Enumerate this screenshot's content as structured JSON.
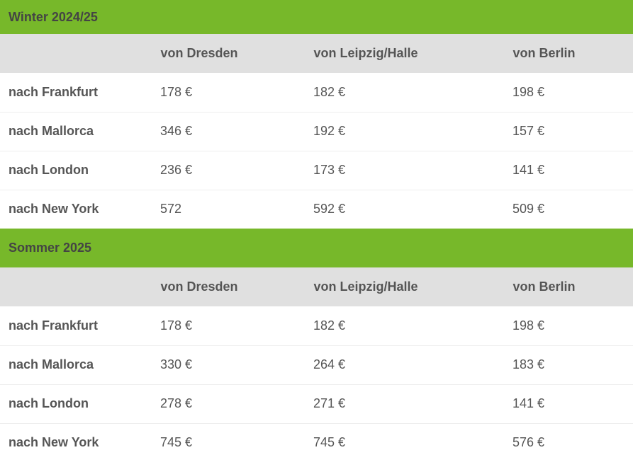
{
  "tables": [
    {
      "season": "Winter 2024/25",
      "columns": [
        "",
        "von Dresden",
        "von Leipzig/Halle",
        "von Berlin"
      ],
      "rows": [
        {
          "dest": "nach Frankfurt",
          "values": [
            "178 €",
            "182 €",
            "198 €"
          ]
        },
        {
          "dest": "nach Mallorca",
          "values": [
            "346 €",
            "192 €",
            "157 €"
          ]
        },
        {
          "dest": "nach London",
          "values": [
            "236 €",
            "173 €",
            "141 €"
          ]
        },
        {
          "dest": "nach New York",
          "values": [
            "572",
            "592 €",
            "509 €"
          ]
        }
      ]
    },
    {
      "season": "Sommer 2025",
      "columns": [
        "",
        "von Dresden",
        "von Leipzig/Halle",
        "von Berlin"
      ],
      "rows": [
        {
          "dest": "nach Frankfurt",
          "values": [
            "178 €",
            "182 €",
            "198 €"
          ]
        },
        {
          "dest": "nach Mallorca",
          "values": [
            "330 €",
            "264 €",
            "183 €"
          ]
        },
        {
          "dest": "nach London",
          "values": [
            "278 €",
            "271 €",
            "141 €"
          ]
        },
        {
          "dest": "nach New York",
          "values": [
            "745 €",
            "745 €",
            "576 €"
          ]
        }
      ]
    }
  ],
  "colors": {
    "season_bg": "#77b82a",
    "header_bg": "#e0e0e0",
    "text": "#555555"
  }
}
